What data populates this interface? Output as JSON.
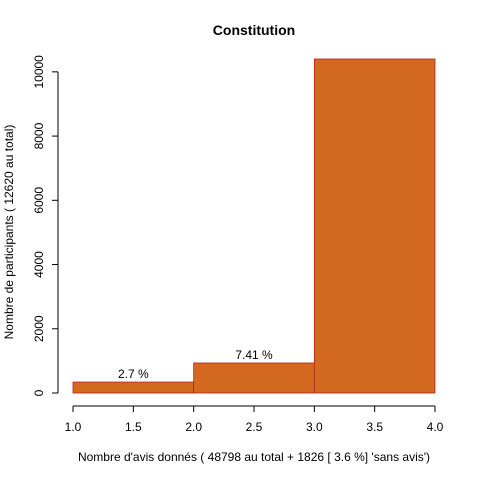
{
  "chart_data": {
    "type": "bar",
    "title": "Constitution",
    "xlabel": "Nombre d'avis donnés ( 48798  au total +  1826 [ 3.6 %]  'sans avis')",
    "ylabel": "Nombre de participants ( 12620  au total)",
    "xlim": [
      1.0,
      4.0
    ],
    "ylim": [
      0,
      10400
    ],
    "x_ticks": [
      "1.0",
      "1.5",
      "2.0",
      "2.5",
      "3.0",
      "3.5",
      "4.0"
    ],
    "y_ticks": [
      "0",
      "2000",
      "4000",
      "6000",
      "8000",
      "10000"
    ],
    "bins": [
      {
        "from": 1.0,
        "to": 2.0,
        "value": 341,
        "label": "2.7 %"
      },
      {
        "from": 2.0,
        "to": 3.0,
        "value": 935,
        "label": "7.41 %"
      },
      {
        "from": 3.0,
        "to": 4.0,
        "value": 10400,
        "label": ""
      }
    ],
    "bar_color": "#D2691E",
    "bar_border_color": "#B22222",
    "grid": false
  }
}
